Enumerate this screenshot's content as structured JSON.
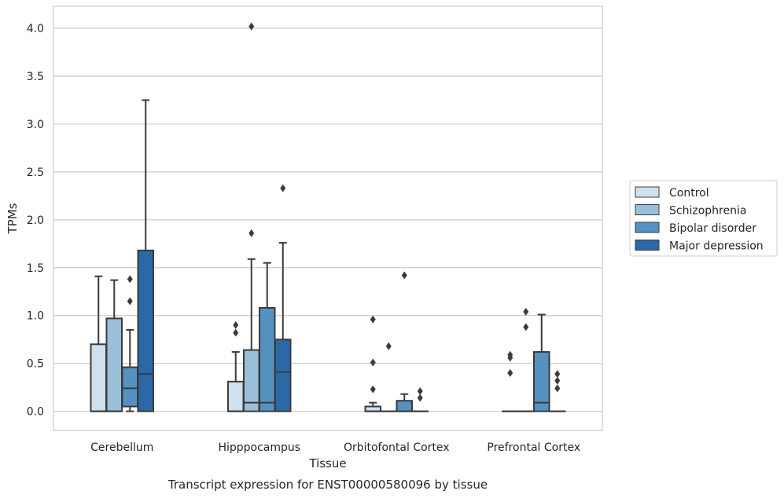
{
  "chart_data": {
    "type": "box",
    "caption": "Transcript expression for ENST00000580096 by tissue",
    "xlabel": "Tissue",
    "ylabel": "TPMs",
    "ylim": [
      -0.2,
      4.23
    ],
    "yticks": [
      0.0,
      0.5,
      1.0,
      1.5,
      2.0,
      2.5,
      3.0,
      3.5,
      4.0
    ],
    "ytick_labels": [
      "0.0",
      "0.5",
      "1.0",
      "1.5",
      "2.0",
      "2.5",
      "3.0",
      "3.5",
      "4.0"
    ],
    "grid": true,
    "legend_position": "right, outside plot",
    "categories": [
      "Cerebellum",
      "Hipppocampus",
      "Orbitofontal Cortex",
      "Prefrontal Cortex"
    ],
    "series": [
      {
        "name": "Control",
        "color": "#cfe0ef",
        "boxes": [
          {
            "whisker_low": 0.0,
            "q1": 0.0,
            "median": 0.0,
            "q3": 0.7,
            "whisker_high": 1.41,
            "outliers": []
          },
          {
            "whisker_low": 0.0,
            "q1": 0.0,
            "median": 0.0,
            "q3": 0.31,
            "whisker_high": 0.62,
            "outliers": [
              0.82,
              0.9
            ]
          },
          {
            "whisker_low": 0.0,
            "q1": 0.0,
            "median": 0.0,
            "q3": 0.05,
            "whisker_high": 0.09,
            "outliers": [
              0.23,
              0.51,
              0.96
            ]
          },
          {
            "whisker_low": 0.0,
            "q1": 0.0,
            "median": 0.0,
            "q3": 0.0,
            "whisker_high": 0.0,
            "outliers": [
              0.4,
              0.56,
              0.59
            ]
          }
        ]
      },
      {
        "name": "Schizophrenia",
        "color": "#9ac0d9",
        "boxes": [
          {
            "whisker_low": 0.0,
            "q1": 0.0,
            "median": 0.0,
            "q3": 0.97,
            "whisker_high": 1.37,
            "outliers": []
          },
          {
            "whisker_low": 0.0,
            "q1": 0.0,
            "median": 0.09,
            "q3": 0.64,
            "whisker_high": 1.59,
            "outliers": [
              1.86,
              4.02
            ]
          },
          {
            "whisker_low": 0.0,
            "q1": 0.0,
            "median": 0.0,
            "q3": 0.0,
            "whisker_high": 0.0,
            "outliers": [
              0.68
            ]
          },
          {
            "whisker_low": 0.0,
            "q1": 0.0,
            "median": 0.0,
            "q3": 0.0,
            "whisker_high": 0.0,
            "outliers": [
              0.88,
              1.04
            ]
          }
        ]
      },
      {
        "name": "Bipolar disorder",
        "color": "#5592c2",
        "boxes": [
          {
            "whisker_low": 0.0,
            "q1": 0.05,
            "median": 0.24,
            "q3": 0.46,
            "whisker_high": 0.85,
            "outliers": [
              1.15,
              1.38
            ]
          },
          {
            "whisker_low": 0.0,
            "q1": 0.0,
            "median": 0.09,
            "q3": 1.08,
            "whisker_high": 1.55,
            "outliers": []
          },
          {
            "whisker_low": 0.0,
            "q1": 0.0,
            "median": 0.0,
            "q3": 0.11,
            "whisker_high": 0.18,
            "outliers": [
              1.42
            ]
          },
          {
            "whisker_low": 0.0,
            "q1": 0.0,
            "median": 0.09,
            "q3": 0.62,
            "whisker_high": 1.01,
            "outliers": []
          }
        ]
      },
      {
        "name": "Major depression",
        "color": "#2c68a6",
        "boxes": [
          {
            "whisker_low": 0.0,
            "q1": 0.0,
            "median": 0.39,
            "q3": 1.68,
            "whisker_high": 3.25,
            "outliers": []
          },
          {
            "whisker_low": 0.0,
            "q1": 0.0,
            "median": 0.41,
            "q3": 0.75,
            "whisker_high": 1.76,
            "outliers": [
              2.33
            ]
          },
          {
            "whisker_low": 0.0,
            "q1": 0.0,
            "median": 0.0,
            "q3": 0.0,
            "whisker_high": 0.0,
            "outliers": [
              0.14,
              0.21
            ]
          },
          {
            "whisker_low": 0.0,
            "q1": 0.0,
            "median": 0.0,
            "q3": 0.0,
            "whisker_high": 0.0,
            "outliers": [
              0.24,
              0.32,
              0.39
            ]
          }
        ]
      }
    ]
  }
}
